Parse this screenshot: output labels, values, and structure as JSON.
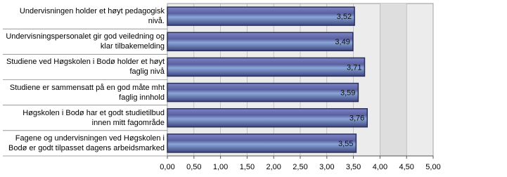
{
  "chart_data": {
    "type": "hbar",
    "categories": [
      "Undervisningen holder et høyt pedagogisk nivå.",
      "Undervisningspersonalet gir god veiledning og klar tilbakemelding",
      "Studiene ved Høgskolen i Bodø holder et høyt faglig nivå",
      "Studiene er sammensatt på en god måte mht faglig innhold",
      "Høgskolen i Bodø har et godt studietilbud innen mitt fagområde",
      "Fagene og undervisningen ved Høgskolen i Bodø er godt tilpasset dagens arbeidsmarked"
    ],
    "values": [
      3.52,
      3.49,
      3.71,
      3.59,
      3.76,
      3.55
    ],
    "value_labels": [
      "3,52",
      "3,49",
      "3,71",
      "3,59",
      "3,76",
      "3,55"
    ],
    "color": "#5a5fa0",
    "xlim": [
      0,
      5
    ],
    "xticks": [
      {
        "value": 0,
        "label": "0,00"
      },
      {
        "value": 0.5,
        "label": "0,50"
      },
      {
        "value": 1,
        "label": "1,00"
      },
      {
        "value": 1.5,
        "label": "1,50"
      },
      {
        "value": 2,
        "label": "2,00"
      },
      {
        "value": 2.5,
        "label": "2,50"
      },
      {
        "value": 3,
        "label": "3,00"
      },
      {
        "value": 3.5,
        "label": "3,50"
      },
      {
        "value": 4,
        "label": "4,00"
      },
      {
        "value": 4.5,
        "label": "4,50"
      },
      {
        "value": 5,
        "label": "5,00"
      }
    ],
    "grid": true
  }
}
